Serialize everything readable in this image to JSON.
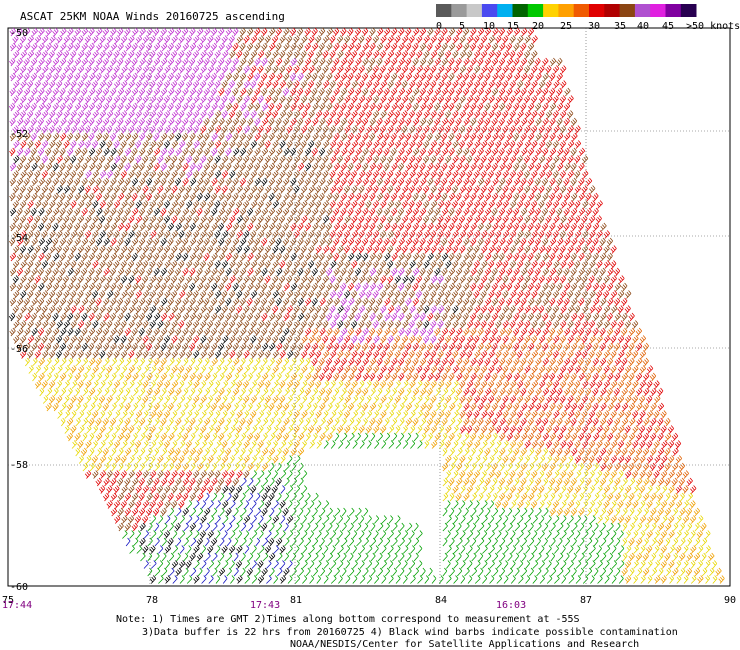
{
  "title": "ASCAT 25KM NOAA Winds 20160725 ascending",
  "legend": {
    "colors": [
      "#5a5a5a",
      "#9a9a9a",
      "#c8c8c8",
      "#4a4af0",
      "#00b0f0",
      "#006400",
      "#00c800",
      "#ffd200",
      "#ffa000",
      "#f05a00",
      "#e00000",
      "#b00000",
      "#8b4513",
      "#b050d0",
      "#e020e0",
      "#8000a0",
      "#280050"
    ],
    "labels": [
      "0",
      "5",
      "10",
      "15",
      "20",
      "25",
      "30",
      "35",
      "40",
      "45",
      ">50 knots"
    ]
  },
  "axes": {
    "lat_labels": [
      "-50",
      "-52",
      "-54",
      "-56",
      "-58",
      "-60"
    ],
    "lon_labels": [
      "75",
      "78",
      "81",
      "84",
      "87",
      "90"
    ]
  },
  "times": [
    "17:44",
    "17:43",
    "16:03"
  ],
  "notes": {
    "line1": "Note: 1) Times are GMT 2)Times along bottom correspond to measurement at -55S",
    "line2": "3)Data buffer is 22 hrs from 20160725 4) Black wind barbs indicate possible contamination",
    "line3": "NOAA/NESDIS/Center for Satellite Applications and Research"
  },
  "wind_palette": {
    "black": "#000000",
    "blue": "#1010c0",
    "green": "#00a000",
    "yellow": "#e8d800",
    "orange": "#f0a000",
    "dark_orange": "#e06000",
    "red": "#e00000",
    "brown": "#8b4513",
    "magenta": "#c030d0"
  }
}
